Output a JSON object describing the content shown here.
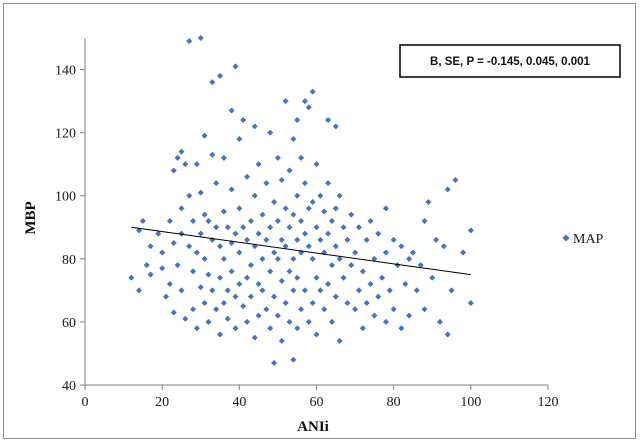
{
  "chart_data": {
    "type": "scatter",
    "xlabel": "ANIi",
    "ylabel": "MBP",
    "xlim": [
      0,
      120
    ],
    "ylim": [
      40,
      150
    ],
    "x_ticks": [
      0,
      20,
      40,
      60,
      80,
      100,
      120
    ],
    "y_ticks": [
      40,
      60,
      80,
      100,
      120,
      140
    ],
    "grid": false,
    "legend_position": "right",
    "annotation": "B, SE, P = -0.145, 0.045, 0.001",
    "colors": {
      "marker": "#4472C4",
      "trendline": "#000000"
    },
    "series": [
      {
        "name": "MAP",
        "marker": "diamond",
        "points": [
          [
            12,
            74
          ],
          [
            14,
            89
          ],
          [
            14,
            70
          ],
          [
            15,
            92
          ],
          [
            16,
            78
          ],
          [
            17,
            84
          ],
          [
            17,
            75
          ],
          [
            19,
            88
          ],
          [
            20,
            77
          ],
          [
            20,
            82
          ],
          [
            21,
            68
          ],
          [
            22,
            92
          ],
          [
            22,
            72
          ],
          [
            23,
            108
          ],
          [
            23,
            85
          ],
          [
            23,
            63
          ],
          [
            24,
            112
          ],
          [
            24,
            78
          ],
          [
            25,
            114
          ],
          [
            25,
            96
          ],
          [
            25,
            88
          ],
          [
            25,
            70
          ],
          [
            26,
            110
          ],
          [
            26,
            61
          ],
          [
            27,
            100
          ],
          [
            27,
            84
          ],
          [
            27,
            149
          ],
          [
            28,
            92
          ],
          [
            28,
            76
          ],
          [
            28,
            64
          ],
          [
            29,
            110
          ],
          [
            29,
            82
          ],
          [
            29,
            58
          ],
          [
            30,
            150
          ],
          [
            30,
            101
          ],
          [
            30,
            88
          ],
          [
            30,
            71
          ],
          [
            31,
            119
          ],
          [
            31,
            94
          ],
          [
            31,
            80
          ],
          [
            31,
            66
          ],
          [
            32,
            92
          ],
          [
            32,
            75
          ],
          [
            32,
            60
          ],
          [
            33,
            136
          ],
          [
            33,
            113
          ],
          [
            33,
            86
          ],
          [
            33,
            70
          ],
          [
            34,
            104
          ],
          [
            34,
            90
          ],
          [
            34,
            64
          ],
          [
            35,
            138
          ],
          [
            35,
            84
          ],
          [
            35,
            74
          ],
          [
            35,
            56
          ],
          [
            36,
            112
          ],
          [
            36,
            95
          ],
          [
            36,
            80
          ],
          [
            36,
            66
          ],
          [
            37,
            90
          ],
          [
            37,
            70
          ],
          [
            37,
            61
          ],
          [
            38,
            127
          ],
          [
            38,
            102
          ],
          [
            38,
            85
          ],
          [
            38,
            76
          ],
          [
            39,
            141
          ],
          [
            39,
            88
          ],
          [
            39,
            68
          ],
          [
            39,
            58
          ],
          [
            40,
            118
          ],
          [
            40,
            96
          ],
          [
            40,
            82
          ],
          [
            40,
            72
          ],
          [
            41,
            124
          ],
          [
            41,
            90
          ],
          [
            41,
            65
          ],
          [
            42,
            106
          ],
          [
            42,
            86
          ],
          [
            42,
            74
          ],
          [
            42,
            60
          ],
          [
            43,
            92
          ],
          [
            43,
            78
          ],
          [
            43,
            68
          ],
          [
            44,
            122
          ],
          [
            44,
            100
          ],
          [
            44,
            84
          ],
          [
            44,
            55
          ],
          [
            45,
            110
          ],
          [
            45,
            88
          ],
          [
            45,
            72
          ],
          [
            45,
            62
          ],
          [
            46,
            94
          ],
          [
            46,
            80
          ],
          [
            46,
            70
          ],
          [
            47,
            104
          ],
          [
            47,
            86
          ],
          [
            47,
            64
          ],
          [
            48,
            120
          ],
          [
            48,
            90
          ],
          [
            48,
            76
          ],
          [
            48,
            58
          ],
          [
            49,
            47
          ],
          [
            49,
            98
          ],
          [
            49,
            82
          ],
          [
            49,
            68
          ],
          [
            50,
            112
          ],
          [
            50,
            92
          ],
          [
            50,
            80
          ],
          [
            50,
            62
          ],
          [
            51,
            105
          ],
          [
            51,
            86
          ],
          [
            51,
            73
          ],
          [
            51,
            54
          ],
          [
            52,
            130
          ],
          [
            52,
            96
          ],
          [
            52,
            84
          ],
          [
            52,
            66
          ],
          [
            53,
            108
          ],
          [
            53,
            90
          ],
          [
            53,
            76
          ],
          [
            53,
            60
          ],
          [
            54,
            118
          ],
          [
            54,
            94
          ],
          [
            54,
            80
          ],
          [
            54,
            70
          ],
          [
            54,
            48
          ],
          [
            55,
            124
          ],
          [
            55,
            100
          ],
          [
            55,
            86
          ],
          [
            55,
            74
          ],
          [
            55,
            58
          ],
          [
            56,
            112
          ],
          [
            56,
            92
          ],
          [
            56,
            82
          ],
          [
            56,
            64
          ],
          [
            57,
            130
          ],
          [
            57,
            104
          ],
          [
            57,
            88
          ],
          [
            57,
            70
          ],
          [
            58,
            128
          ],
          [
            58,
            96
          ],
          [
            58,
            84
          ],
          [
            58,
            60
          ],
          [
            59,
            133
          ],
          [
            59,
            98
          ],
          [
            59,
            80
          ],
          [
            59,
            66
          ],
          [
            60,
            110
          ],
          [
            60,
            90
          ],
          [
            60,
            74
          ],
          [
            60,
            56
          ],
          [
            61,
            100
          ],
          [
            61,
            86
          ],
          [
            61,
            70
          ],
          [
            62,
            95
          ],
          [
            62,
            82
          ],
          [
            62,
            64
          ],
          [
            63,
            124
          ],
          [
            63,
            104
          ],
          [
            63,
            88
          ],
          [
            63,
            72
          ],
          [
            64,
            92
          ],
          [
            64,
            78
          ],
          [
            64,
            60
          ],
          [
            65,
            122
          ],
          [
            65,
            96
          ],
          [
            65,
            84
          ],
          [
            65,
            68
          ],
          [
            66,
            100
          ],
          [
            66,
            80
          ],
          [
            66,
            54
          ],
          [
            67,
            90
          ],
          [
            67,
            74
          ],
          [
            68,
            86
          ],
          [
            68,
            66
          ],
          [
            69,
            94
          ],
          [
            69,
            78
          ],
          [
            70,
            82
          ],
          [
            70,
            64
          ],
          [
            71,
            90
          ],
          [
            71,
            70
          ],
          [
            72,
            76
          ],
          [
            72,
            58
          ],
          [
            73,
            86
          ],
          [
            73,
            66
          ],
          [
            74,
            92
          ],
          [
            74,
            72
          ],
          [
            75,
            80
          ],
          [
            75,
            62
          ],
          [
            76,
            88
          ],
          [
            76,
            68
          ],
          [
            77,
            74
          ],
          [
            78,
            96
          ],
          [
            78,
            82
          ],
          [
            78,
            60
          ],
          [
            79,
            70
          ],
          [
            80,
            86
          ],
          [
            80,
            64
          ],
          [
            81,
            78
          ],
          [
            82,
            84
          ],
          [
            82,
            58
          ],
          [
            83,
            72
          ],
          [
            84,
            80
          ],
          [
            84,
            62
          ],
          [
            85,
            82
          ],
          [
            86,
            70
          ],
          [
            87,
            78
          ],
          [
            88,
            92
          ],
          [
            88,
            64
          ],
          [
            89,
            98
          ],
          [
            90,
            74
          ],
          [
            91,
            86
          ],
          [
            92,
            60
          ],
          [
            93,
            84
          ],
          [
            94,
            102
          ],
          [
            94,
            56
          ],
          [
            95,
            70
          ],
          [
            96,
            105
          ],
          [
            98,
            82
          ],
          [
            100,
            89
          ],
          [
            100,
            66
          ]
        ]
      }
    ],
    "trendline": {
      "x": [
        12,
        100
      ],
      "y": [
        90,
        75
      ]
    }
  }
}
